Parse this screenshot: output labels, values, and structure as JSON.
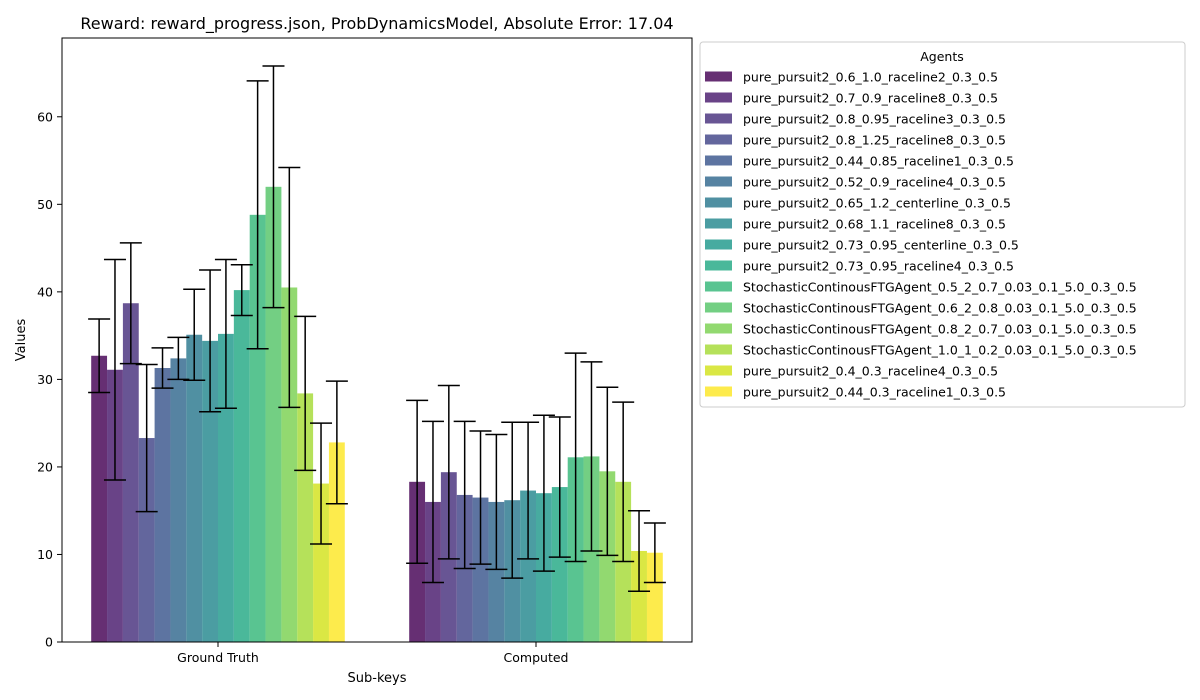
{
  "chart_data": {
    "type": "bar",
    "title": "Reward: reward_progress.json, ProbDynamicsModel, Absolute Error: 17.04",
    "xlabel": "Sub-keys",
    "ylabel": "Values",
    "categories": [
      "Ground Truth",
      "Computed"
    ],
    "ylim": [
      0,
      69
    ],
    "yticks": [
      0,
      10,
      20,
      30,
      40,
      50,
      60
    ],
    "legend_title": "Agents",
    "legend_position": "outside-right",
    "series": [
      {
        "name": "pure_pursuit2_0.6_1.0_raceline2_0.3_0.5",
        "color": "#440154",
        "values": [
          32.7,
          18.3
        ],
        "errors": [
          4.2,
          9.3
        ]
      },
      {
        "name": "pure_pursuit2_0.7_0.9_raceline8_0.3_0.5",
        "color": "#481a6c",
        "values": [
          31.1,
          16.0
        ],
        "errors": [
          12.6,
          9.2
        ]
      },
      {
        "name": "pure_pursuit2_0.8_0.95_raceline3_0.3_0.5",
        "color": "#472f7d",
        "values": [
          38.7,
          19.4
        ],
        "errors": [
          6.9,
          9.9
        ]
      },
      {
        "name": "pure_pursuit2_0.8_1.25_raceline8_0.3_0.5",
        "color": "#414487",
        "values": [
          23.3,
          16.8
        ],
        "errors": [
          8.4,
          8.4
        ]
      },
      {
        "name": "pure_pursuit2_0.44_0.85_raceline1_0.3_0.5",
        "color": "#39568c",
        "values": [
          31.3,
          16.5
        ],
        "errors": [
          2.3,
          7.6
        ]
      },
      {
        "name": "pure_pursuit2_0.52_0.9_raceline4_0.3_0.5",
        "color": "#31688e",
        "values": [
          32.4,
          16.0
        ],
        "errors": [
          2.4,
          7.7
        ]
      },
      {
        "name": "pure_pursuit2_0.65_1.2_centerline_0.3_0.5",
        "color": "#2a788e",
        "values": [
          35.1,
          16.2
        ],
        "errors": [
          5.2,
          8.9
        ]
      },
      {
        "name": "pure_pursuit2_0.68_1.1_raceline8_0.3_0.5",
        "color": "#23888e",
        "values": [
          34.4,
          17.3
        ],
        "errors": [
          8.1,
          7.8
        ]
      },
      {
        "name": "pure_pursuit2_0.73_0.95_centerline_0.3_0.5",
        "color": "#1f988b",
        "values": [
          35.2,
          17.0
        ],
        "errors": [
          8.5,
          8.9
        ]
      },
      {
        "name": "pure_pursuit2_0.73_0.95_raceline4_0.3_0.5",
        "color": "#22a884",
        "values": [
          40.2,
          17.7
        ],
        "errors": [
          2.9,
          8.0
        ]
      },
      {
        "name": "StochasticContinousFTGAgent_0.5_2_0.7_0.03_0.1_5.0_0.3_0.5",
        "color": "#35b779",
        "values": [
          48.8,
          21.1
        ],
        "errors": [
          15.3,
          11.9
        ]
      },
      {
        "name": "StochasticContinousFTGAgent_0.6_2_0.8_0.03_0.1_5.0_0.3_0.5",
        "color": "#54c568",
        "values": [
          52.0,
          21.2
        ],
        "errors": [
          13.8,
          10.8
        ]
      },
      {
        "name": "StochasticContinousFTGAgent_0.8_2_0.7_0.03_0.1_5.0_0.3_0.5",
        "color": "#7ad151",
        "values": [
          40.5,
          19.5
        ],
        "errors": [
          13.7,
          9.6
        ]
      },
      {
        "name": "StochasticContinousFTGAgent_1.0_1_0.2_0.03_0.1_5.0_0.3_0.5",
        "color": "#a5db36",
        "values": [
          28.4,
          18.3
        ],
        "errors": [
          8.8,
          9.1
        ]
      },
      {
        "name": "pure_pursuit2_0.4_0.3_raceline4_0.3_0.5",
        "color": "#d2e21b",
        "values": [
          18.1,
          10.4
        ],
        "errors": [
          6.9,
          4.6
        ]
      },
      {
        "name": "pure_pursuit2_0.44_0.3_raceline1_0.3_0.5",
        "color": "#fde725",
        "values": [
          22.8,
          10.2
        ],
        "errors": [
          7.0,
          3.4
        ]
      }
    ]
  }
}
